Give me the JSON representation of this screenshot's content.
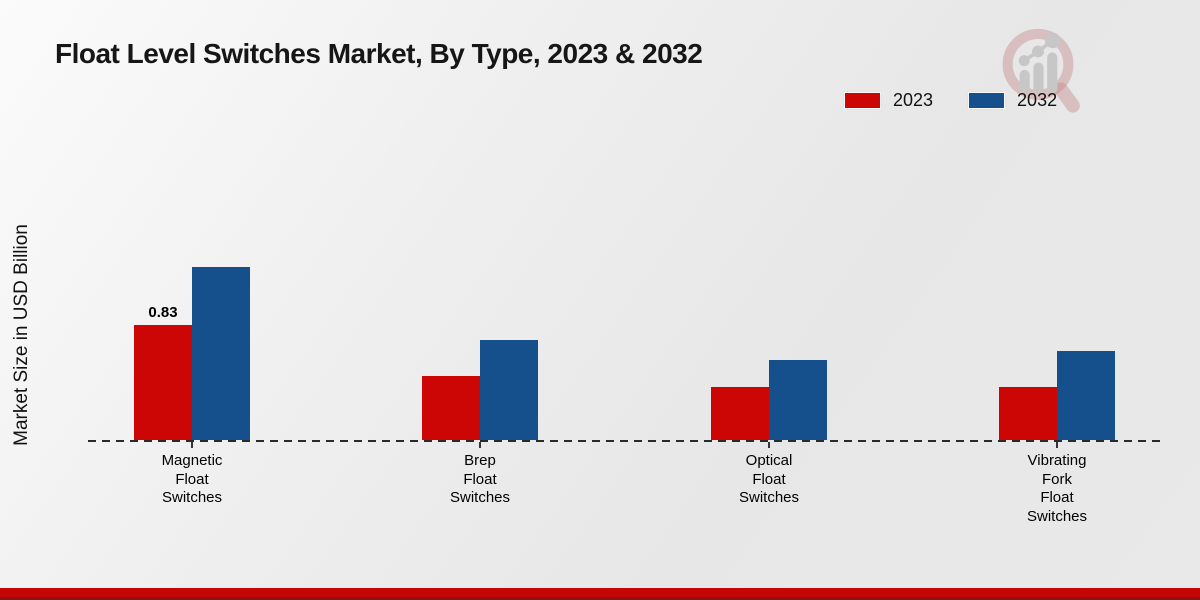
{
  "title": "Float Level Switches Market, By Type, 2023 & 2032",
  "y_axis_label": "Market Size in USD Billion",
  "legend": [
    {
      "label": "2023",
      "color": "#cc0505"
    },
    {
      "label": "2032",
      "color": "#15508c"
    }
  ],
  "logo_icon": "magnifier-bar-chart-logo",
  "accent_colors": {
    "series_2023_red": "#cc0505",
    "series_2032_blue": "#15508c",
    "footer_strip_red": "#c40606",
    "footer_strip_dark_red": "#8a1414"
  },
  "chart_data": {
    "type": "bar",
    "title": "Float Level Switches Market, By Type, 2023 & 2032",
    "xlabel": "",
    "ylabel": "Market Size in USD Billion",
    "categories": [
      "Magnetic Float Switches",
      "Brep Float Switches",
      "Optical Float Switches",
      "Vibrating Fork Float Switches"
    ],
    "series": [
      {
        "name": "2023",
        "color": "#cc0505",
        "values": [
          0.83,
          0.46,
          0.38,
          0.38
        ],
        "bar_labels": [
          "0.83",
          "",
          "",
          ""
        ]
      },
      {
        "name": "2032",
        "color": "#15508c",
        "values": [
          1.25,
          0.72,
          0.58,
          0.64
        ],
        "bar_labels": [
          "",
          "",
          "",
          ""
        ]
      }
    ],
    "ylim": [
      0,
      1.4
    ],
    "grid": false,
    "y_axis_ticks_visible": false,
    "baseline_style": "dashed",
    "legend_position": "top-right"
  }
}
